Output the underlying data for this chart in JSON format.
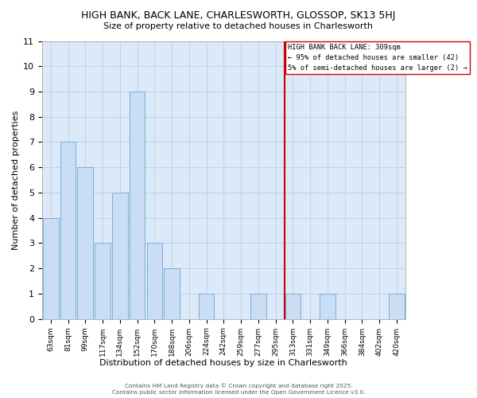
{
  "title": "HIGH BANK, BACK LANE, CHARLESWORTH, GLOSSOP, SK13 5HJ",
  "subtitle": "Size of property relative to detached houses in Charlesworth",
  "xlabel": "Distribution of detached houses by size in Charlesworth",
  "ylabel": "Number of detached properties",
  "bar_labels": [
    "63sqm",
    "81sqm",
    "99sqm",
    "117sqm",
    "134sqm",
    "152sqm",
    "170sqm",
    "188sqm",
    "206sqm",
    "224sqm",
    "242sqm",
    "259sqm",
    "277sqm",
    "295sqm",
    "313sqm",
    "331sqm",
    "349sqm",
    "366sqm",
    "384sqm",
    "402sqm",
    "420sqm"
  ],
  "bar_values": [
    4,
    7,
    6,
    3,
    5,
    9,
    3,
    2,
    0,
    1,
    0,
    0,
    1,
    0,
    1,
    0,
    1,
    0,
    0,
    0,
    1
  ],
  "bar_color": "#c9ddf5",
  "bar_edge_color": "#7aaed6",
  "grid_color": "#b8cfe8",
  "plot_bg_color": "#dce9f8",
  "fig_bg_color": "#ffffff",
  "vline_index": 14,
  "vline_color": "#cc0000",
  "annotation_line1": "HIGH BANK BACK LANE: 309sqm",
  "annotation_line2": "← 95% of detached houses are smaller (42)",
  "annotation_line3": "5% of semi-detached houses are larger (2) →",
  "ylim": [
    0,
    11
  ],
  "yticks": [
    0,
    1,
    2,
    3,
    4,
    5,
    6,
    7,
    8,
    9,
    10,
    11
  ],
  "footer1": "Contains HM Land Registry data © Crown copyright and database right 2025.",
  "footer2": "Contains public sector information licensed under the Open Government Licence v3.0."
}
